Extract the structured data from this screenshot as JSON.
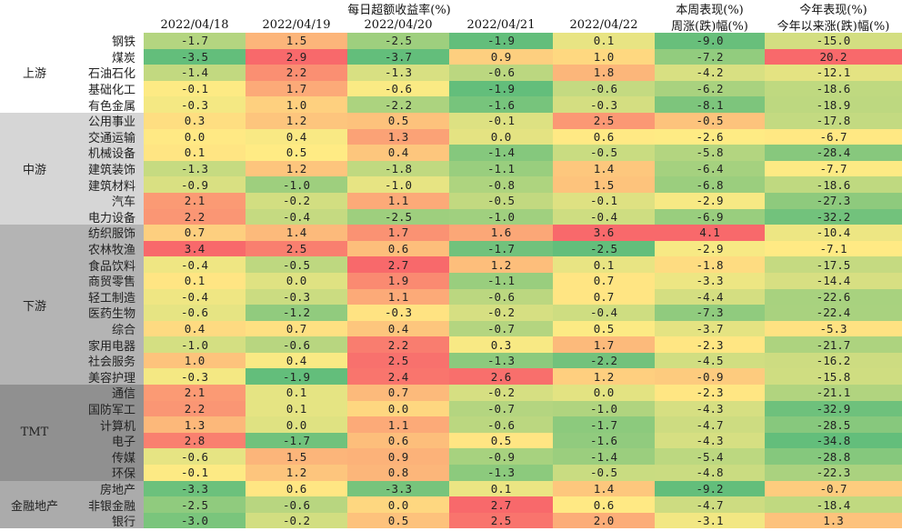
{
  "chart_data": {
    "type": "heatmap",
    "title": "每日超额收益率(%)",
    "date_columns": [
      "2022/04/18",
      "2022/04/19",
      "2022/04/20",
      "2022/04/21",
      "2022/04/22"
    ],
    "week_header": [
      "本周表现(%)",
      "周涨(跌)幅(%)"
    ],
    "ytd_header": [
      "今年表现(%)",
      "今年以来涨(跌)幅(%)"
    ],
    "groups": [
      {
        "name": "上游",
        "rows": [
          {
            "sector": "钢铁",
            "values": [
              -1.7,
              1.5,
              -2.5,
              -1.9,
              0.1,
              -9.0,
              -15.0
            ]
          },
          {
            "sector": "煤炭",
            "values": [
              -3.5,
              2.9,
              -3.7,
              0.9,
              1.0,
              -7.2,
              20.2
            ]
          },
          {
            "sector": "石油石化",
            "values": [
              -1.4,
              2.2,
              -1.3,
              -0.6,
              1.8,
              -4.2,
              -12.1
            ]
          },
          {
            "sector": "基础化工",
            "values": [
              -0.1,
              1.7,
              -0.6,
              -1.9,
              -0.6,
              -6.2,
              -18.6
            ]
          },
          {
            "sector": "有色金属",
            "values": [
              -0.3,
              1.0,
              -2.2,
              -1.6,
              -0.3,
              -8.1,
              -18.9
            ]
          }
        ]
      },
      {
        "name": "中游",
        "rows": [
          {
            "sector": "公用事业",
            "values": [
              0.3,
              1.2,
              0.5,
              -0.1,
              2.5,
              -0.5,
              -17.8
            ]
          },
          {
            "sector": "交通运输",
            "values": [
              0.0,
              0.4,
              1.3,
              0.0,
              0.6,
              -2.6,
              -6.7
            ]
          },
          {
            "sector": "机械设备",
            "values": [
              0.1,
              0.5,
              0.4,
              -1.4,
              -0.5,
              -5.8,
              -28.4
            ]
          },
          {
            "sector": "建筑装饰",
            "values": [
              -1.3,
              1.2,
              -1.8,
              -1.1,
              1.4,
              -6.4,
              -7.7
            ]
          },
          {
            "sector": "建筑材料",
            "values": [
              -0.9,
              -1.0,
              -1.0,
              -0.8,
              1.5,
              -6.8,
              -18.6
            ]
          },
          {
            "sector": "汽车",
            "values": [
              2.1,
              -0.2,
              1.1,
              -0.5,
              -0.1,
              -2.9,
              -27.3
            ]
          },
          {
            "sector": "电力设备",
            "values": [
              2.2,
              -0.4,
              -2.5,
              -1.0,
              -0.4,
              -6.9,
              -32.2
            ]
          }
        ]
      },
      {
        "name": "下游",
        "rows": [
          {
            "sector": "纺织服饰",
            "values": [
              0.7,
              1.4,
              1.7,
              1.6,
              3.6,
              4.1,
              -10.4
            ]
          },
          {
            "sector": "农林牧渔",
            "values": [
              3.4,
              2.5,
              0.6,
              -1.7,
              -2.5,
              -2.9,
              -7.1
            ]
          },
          {
            "sector": "食品饮料",
            "values": [
              -0.4,
              -0.5,
              2.7,
              1.2,
              0.1,
              -1.8,
              -17.5
            ]
          },
          {
            "sector": "商贸零售",
            "values": [
              0.1,
              0.0,
              1.9,
              -1.1,
              0.7,
              -3.3,
              -14.4
            ]
          },
          {
            "sector": "轻工制造",
            "values": [
              -0.4,
              -0.3,
              1.1,
              -0.6,
              0.7,
              -4.4,
              -22.6
            ]
          },
          {
            "sector": "医药生物",
            "values": [
              -0.6,
              -1.2,
              -0.3,
              -0.2,
              -0.4,
              -7.3,
              -22.4
            ]
          },
          {
            "sector": "综合",
            "values": [
              0.4,
              0.7,
              0.4,
              -0.7,
              0.5,
              -3.7,
              -5.3
            ]
          },
          {
            "sector": "家用电器",
            "values": [
              -1.0,
              -0.6,
              2.2,
              0.3,
              1.7,
              -2.3,
              -21.7
            ]
          },
          {
            "sector": "社会服务",
            "values": [
              1.0,
              0.4,
              2.5,
              -1.3,
              -2.2,
              -4.5,
              -16.2
            ]
          },
          {
            "sector": "美容护理",
            "values": [
              -0.3,
              -1.9,
              2.4,
              2.6,
              1.2,
              -0.9,
              -15.8
            ]
          }
        ]
      },
      {
        "name": "TMT",
        "rows": [
          {
            "sector": "通信",
            "values": [
              2.1,
              0.1,
              0.7,
              -0.2,
              0.0,
              -2.3,
              -21.1
            ]
          },
          {
            "sector": "国防军工",
            "values": [
              2.2,
              0.1,
              0.0,
              -0.7,
              -1.0,
              -4.3,
              -32.9
            ]
          },
          {
            "sector": "计算机",
            "values": [
              1.3,
              0.0,
              1.1,
              -0.6,
              -1.7,
              -4.7,
              -28.5
            ]
          },
          {
            "sector": "电子",
            "values": [
              2.8,
              -1.7,
              0.6,
              0.5,
              -1.6,
              -4.3,
              -34.8
            ]
          },
          {
            "sector": "传媒",
            "values": [
              -0.6,
              1.5,
              0.9,
              -0.9,
              -1.4,
              -5.4,
              -28.8
            ]
          },
          {
            "sector": "环保",
            "values": [
              -0.1,
              1.2,
              0.8,
              -1.3,
              -0.5,
              -4.8,
              -22.3
            ]
          }
        ]
      },
      {
        "name": "金融地产",
        "rows": [
          {
            "sector": "房地产",
            "values": [
              -3.3,
              0.6,
              -3.3,
              0.1,
              1.4,
              -9.2,
              -0.7
            ]
          },
          {
            "sector": "非银金融",
            "values": [
              -2.5,
              -0.6,
              0.0,
              2.7,
              0.6,
              -4.7,
              -18.4
            ]
          },
          {
            "sector": "银行",
            "values": [
              -3.0,
              -0.2,
              0.5,
              2.5,
              2.0,
              -3.1,
              1.3
            ]
          }
        ]
      }
    ],
    "colors": {
      "positive": "#f8696b",
      "mid": "#ffeb84",
      "negative": "#63be7b",
      "group_band": [
        "#ffffff",
        "#d6d6d6",
        "#b4b4b4",
        "#909090",
        "#ababab"
      ]
    }
  }
}
